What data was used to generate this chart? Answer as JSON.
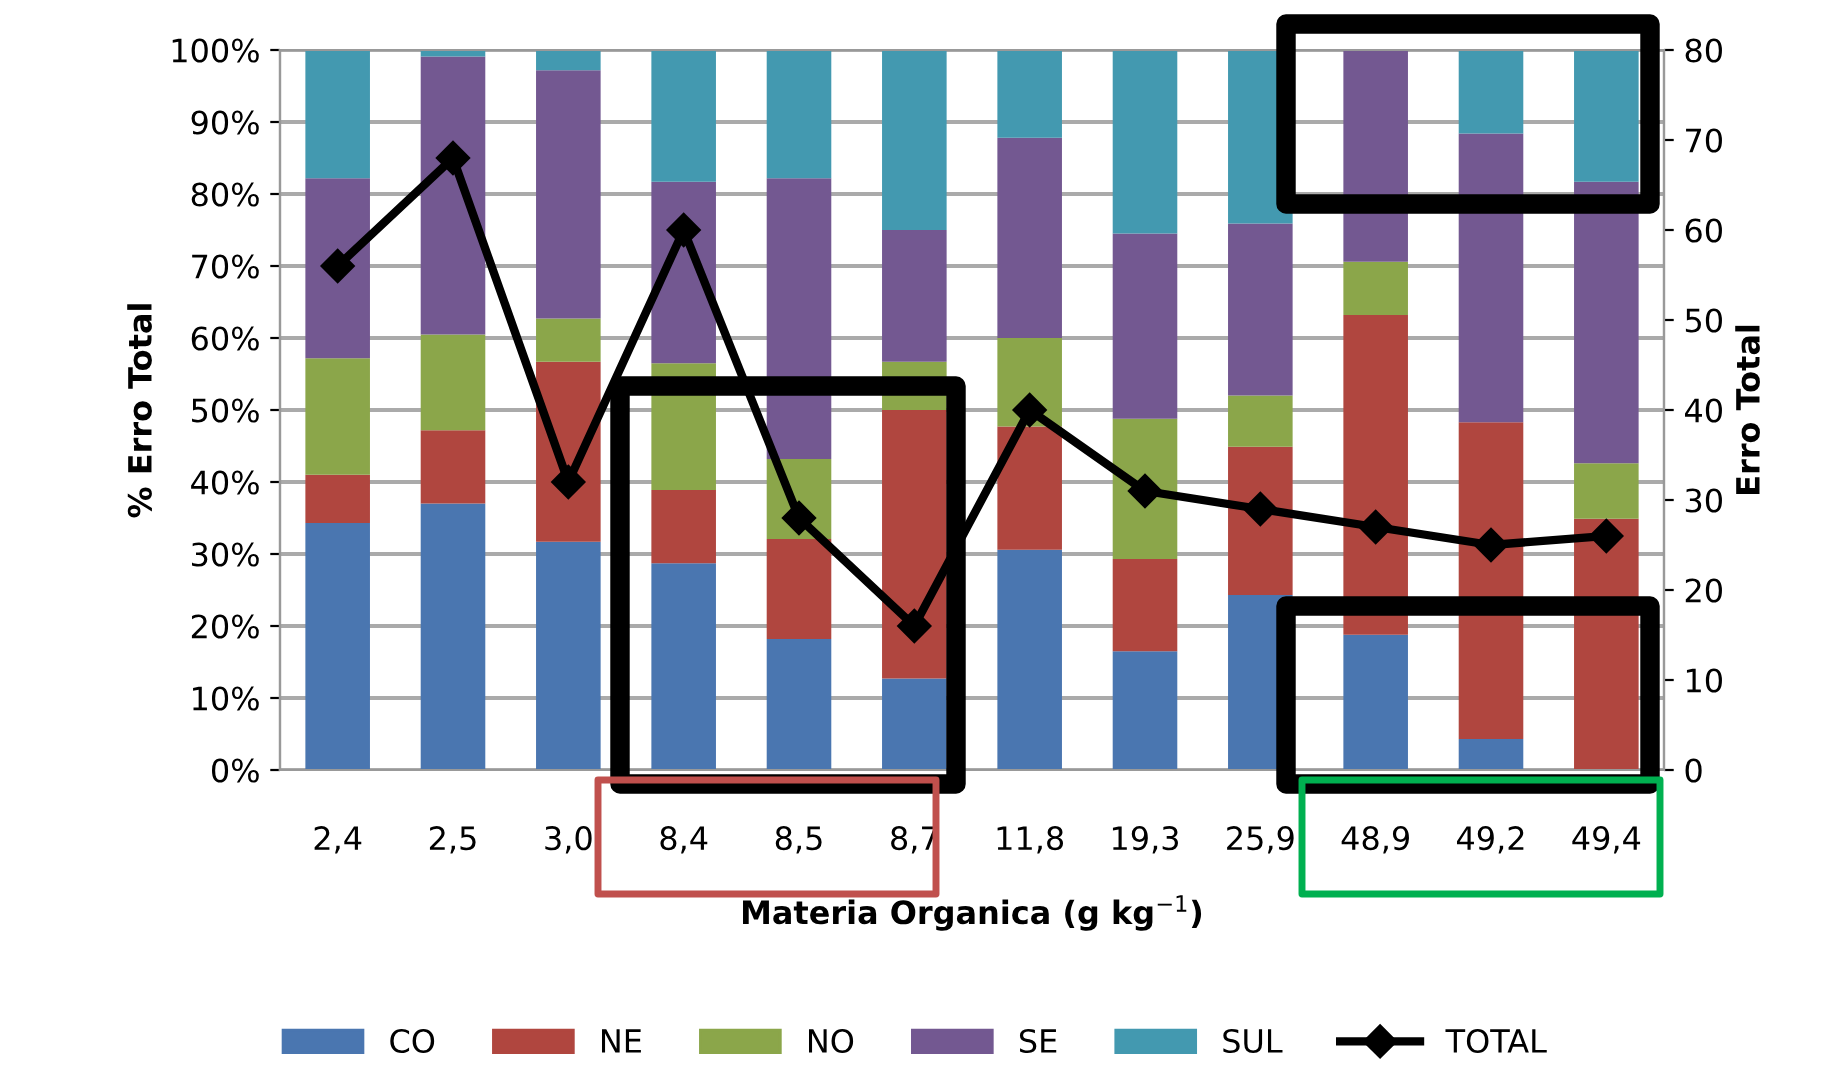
{
  "chart_data": {
    "type": "bar",
    "stacked": true,
    "categories": [
      "2,4",
      "2,5",
      "3,0",
      "8,4",
      "8,5",
      "8,7",
      "11,8",
      "19,3",
      "25,9",
      "48,9",
      "49,2",
      "49,4"
    ],
    "xlabel": "Materia Organica (g kg$^{−1}$)",
    "ylabel": "% Erro Total",
    "y2label": "Erro Total",
    "series": [
      {
        "name": "CO",
        "color": "#4a76b0",
        "values": [
          34.3,
          37.0,
          31.7,
          28.7,
          18.2,
          12.7,
          30.6,
          16.5,
          24.3,
          18.8,
          4.3,
          0
        ]
      },
      {
        "name": "NE",
        "color": "#b0463f",
        "values": [
          6.7,
          10.2,
          25.0,
          10.2,
          13.9,
          37.3,
          17.1,
          12.8,
          20.6,
          44.4,
          44.0,
          34.9
        ]
      },
      {
        "name": "NO",
        "color": "#8ba64a",
        "values": [
          16.2,
          13.3,
          6.0,
          17.6,
          11.1,
          6.7,
          12.3,
          19.5,
          7.1,
          7.4,
          0,
          7.7
        ]
      },
      {
        "name": "SE",
        "color": "#735891",
        "values": [
          25.0,
          38.6,
          34.5,
          25.2,
          39.0,
          18.3,
          27.8,
          25.7,
          23.9,
          29.4,
          40.1,
          39.1
        ]
      },
      {
        "name": "SUL",
        "color": "#4399b0",
        "values": [
          17.8,
          0.9,
          2.8,
          18.3,
          17.8,
          25.0,
          12.2,
          25.5,
          24.1,
          0,
          11.6,
          18.3
        ]
      },
      {
        "name": "TOTAL",
        "type": "line",
        "axis": "y2",
        "color": "#000000",
        "marker": "diamond",
        "values": [
          56,
          68,
          32,
          60,
          28,
          16,
          40,
          31,
          29,
          27,
          25,
          26
        ]
      }
    ],
    "ylim": [
      0,
      100
    ],
    "yticks": [
      {
        "value": 0,
        "label": "0%"
      },
      {
        "value": 10,
        "label": "10%"
      },
      {
        "value": 20,
        "label": "20%"
      },
      {
        "value": 30,
        "label": "30%"
      },
      {
        "value": 40,
        "label": "40%"
      },
      {
        "value": 50,
        "label": "50%"
      },
      {
        "value": 60,
        "label": "60%"
      },
      {
        "value": 70,
        "label": "70%"
      },
      {
        "value": 80,
        "label": "80%"
      },
      {
        "value": 90,
        "label": "90%"
      },
      {
        "value": 100,
        "label": "100%"
      }
    ],
    "y2lim": [
      0,
      80
    ],
    "y2ticks": [
      0,
      10,
      20,
      30,
      40,
      50,
      60,
      70,
      80
    ],
    "grid": "y",
    "legend": "bottom"
  }
}
